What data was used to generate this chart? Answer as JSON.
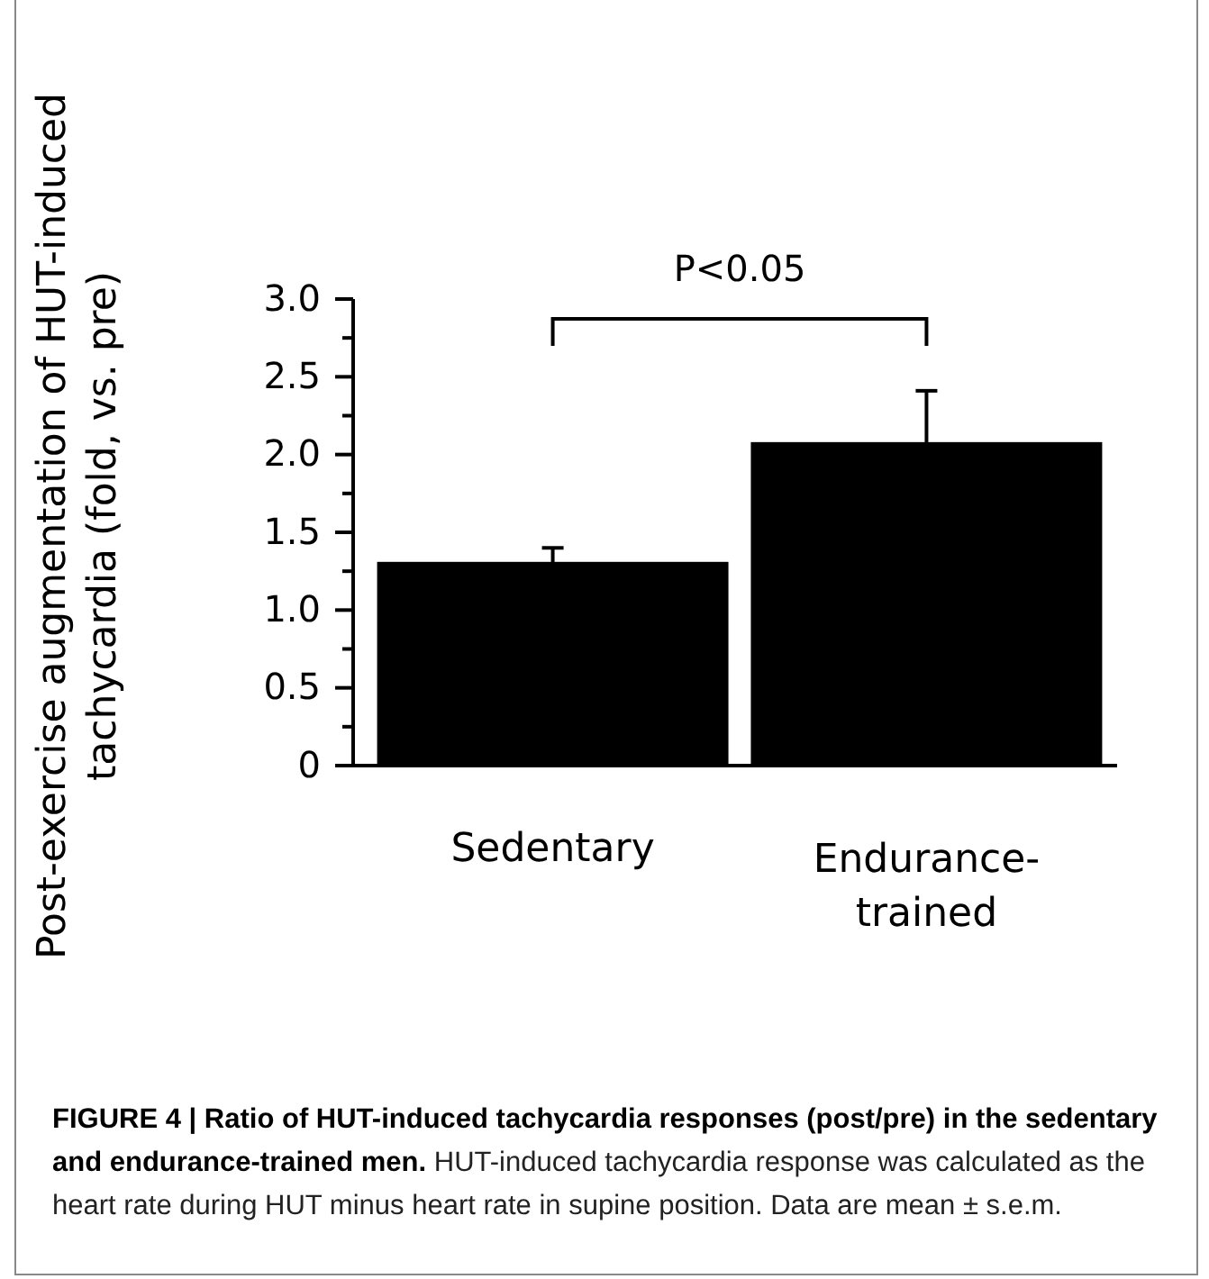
{
  "chart_data": {
    "type": "bar",
    "title": "FIGURE 4 | Ratio of HUT-induced tachycardia responses (post/pre) in the sedentary and endurance-trained men.",
    "ylabel": "Post-exercise augmentation of HUT-induced tachycardia (fold, vs. pre)",
    "categories": [
      "Sedentary",
      "Endurance-trained"
    ],
    "values": [
      1.31,
      2.08
    ],
    "errors": [
      0.09,
      0.33
    ],
    "color": "#000000",
    "ylim": [
      0,
      3
    ],
    "yticks": [
      0,
      {
        "value": 0.25,
        "label": null
      },
      {
        "value": 0.5,
        "label": "0.5"
      },
      {
        "value": 0.75,
        "label": null
      },
      {
        "value": 1,
        "label": "1.0"
      },
      {
        "value": 1.25,
        "label": null
      },
      {
        "value": 1.5,
        "label": "1.5"
      },
      {
        "value": 1.75,
        "label": null
      },
      {
        "value": 2,
        "label": "2.0"
      },
      {
        "value": 2.25,
        "label": null
      },
      {
        "value": 2.5,
        "label": "2.5"
      },
      {
        "value": 2.75,
        "label": null
      },
      {
        "value": 3,
        "label": "3.0"
      }
    ],
    "annotations": [
      "P<0.05",
      "HUT-induced tachycardia response was calculated as the heart rate during HUT minus heart rate in supine position. Data are mean ± s.e.m."
    ]
  }
}
